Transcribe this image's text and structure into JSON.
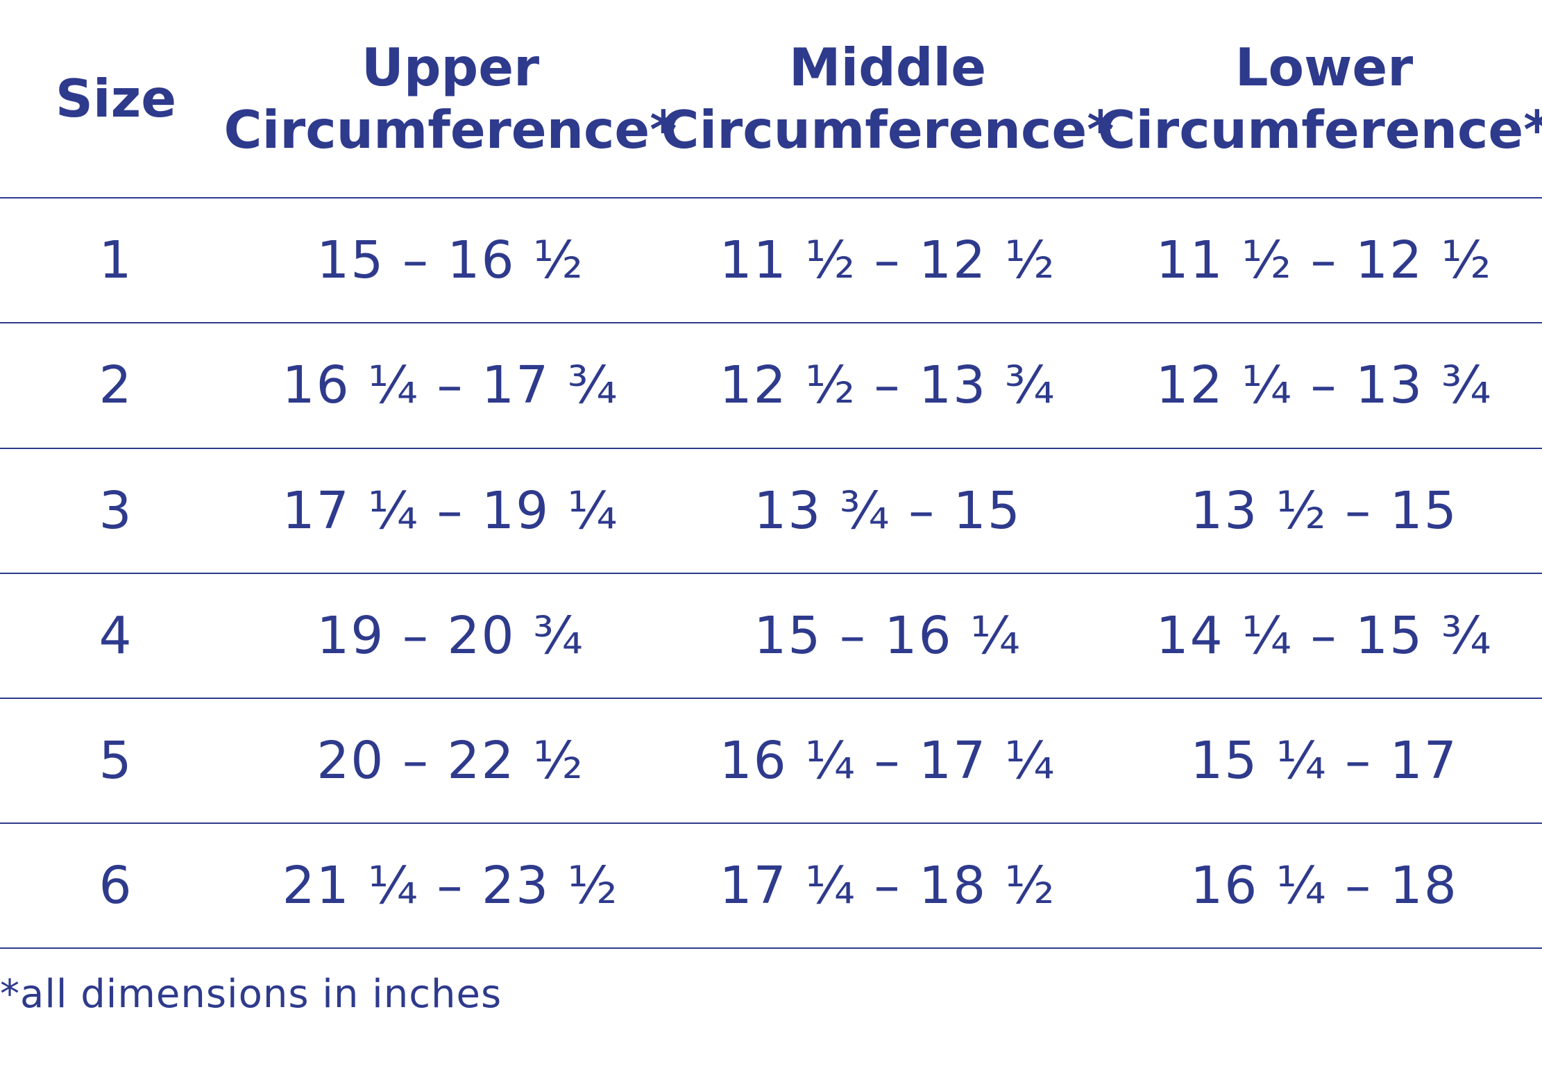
{
  "colors": {
    "text": "#2e3a8c",
    "rule": "#2e3a8c",
    "background": "#ffffff"
  },
  "headers": [
    {
      "line1": "Size",
      "line2": ""
    },
    {
      "line1": "Upper",
      "line2": "Circumference*"
    },
    {
      "line1": "Middle",
      "line2": "Circumference*"
    },
    {
      "line1": "Lower",
      "line2": "Circumference*"
    }
  ],
  "rows": [
    [
      "1",
      "15 – 16 ½",
      "11 ½ – 12 ½",
      "11 ½ – 12 ½"
    ],
    [
      "2",
      "16 ¼ – 17 ¾",
      "12 ½ – 13 ¾",
      "12 ¼ – 13 ¾"
    ],
    [
      "3",
      "17 ¼ – 19 ¼",
      "13 ¾ – 15",
      "13 ½ – 15"
    ],
    [
      "4",
      "19 – 20 ¾",
      "15 – 16 ¼",
      "14 ¼ – 15 ¾"
    ],
    [
      "5",
      "20 – 22 ½",
      "16 ¼ – 17 ¼",
      "15 ¼ – 17"
    ],
    [
      "6",
      "21 ¼ – 23 ½",
      "17 ¼ – 18 ½",
      "16 ¼ – 18"
    ]
  ],
  "footnote": "*all dimensions in inches"
}
